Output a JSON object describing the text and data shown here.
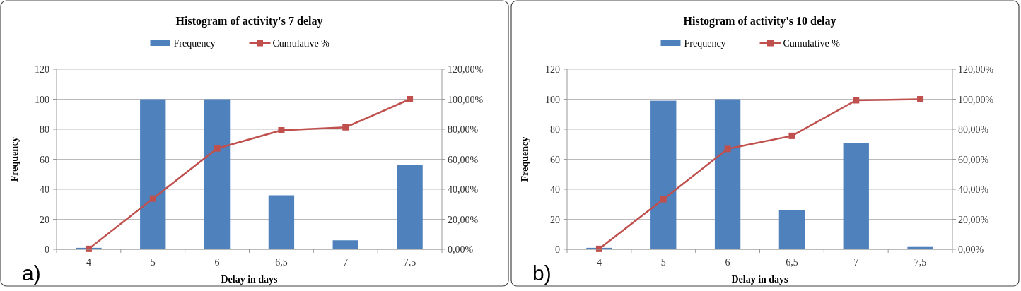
{
  "chart_data": [
    {
      "type": "bar",
      "title": "Histogram of activity's 7 delay",
      "xlabel": "Delay in days",
      "ylabel": "Frequency",
      "categories": [
        "4",
        "5",
        "6",
        "6,5",
        "7",
        "7,5"
      ],
      "series": [
        {
          "name": "Frequency",
          "color": "#4f81bd",
          "values": [
            1,
            100,
            100,
            36,
            6,
            56
          ]
        },
        {
          "name": "Cumulative %",
          "type": "line",
          "axis": "y2",
          "color": "#c0504d",
          "values": [
            0.3,
            33.8,
            67.2,
            79.3,
            81.3,
            100
          ]
        }
      ],
      "ylim": [
        0,
        120
      ],
      "yticks": [
        0,
        20,
        40,
        60,
        80,
        100,
        120
      ],
      "y2lim": [
        0,
        120
      ],
      "y2ticks": [
        {
          "value": 0,
          "label": "0,00%"
        },
        {
          "value": 20,
          "label": "20,00%"
        },
        {
          "value": 40,
          "label": "40,00%"
        },
        {
          "value": 60,
          "label": "60,00%"
        },
        {
          "value": 80,
          "label": "80,00%"
        },
        {
          "value": 100,
          "label": "100,00%"
        },
        {
          "value": 120,
          "label": "120,00%"
        }
      ],
      "grid": "y",
      "legend": "top",
      "marker": "square",
      "annotations": [
        "a)"
      ]
    },
    {
      "type": "bar",
      "title": "Histogram of activity's 10 delay",
      "xlabel": "Delay in days",
      "ylabel": "Frequency",
      "categories": [
        "4",
        "5",
        "6",
        "6,5",
        "7",
        "7,5"
      ],
      "series": [
        {
          "name": "Frequency",
          "color": "#4f81bd",
          "values": [
            1,
            99,
            100,
            26,
            71,
            2
          ]
        },
        {
          "name": "Cumulative %",
          "type": "line",
          "axis": "y2",
          "color": "#c0504d",
          "values": [
            0.3,
            33.4,
            66.9,
            75.6,
            99.3,
            100
          ]
        }
      ],
      "ylim": [
        0,
        120
      ],
      "yticks": [
        0,
        20,
        40,
        60,
        80,
        100,
        120
      ],
      "y2lim": [
        0,
        120
      ],
      "y2ticks": [
        {
          "value": 0,
          "label": "0,00%"
        },
        {
          "value": 20,
          "label": "20,00%"
        },
        {
          "value": 40,
          "label": "40,00%"
        },
        {
          "value": 60,
          "label": "60,00%"
        },
        {
          "value": 80,
          "label": "80,00%"
        },
        {
          "value": 100,
          "label": "100,00%"
        },
        {
          "value": 120,
          "label": "120,00%"
        }
      ],
      "grid": "y",
      "legend": "top",
      "marker": "square",
      "annotations": [
        "b)"
      ]
    }
  ]
}
